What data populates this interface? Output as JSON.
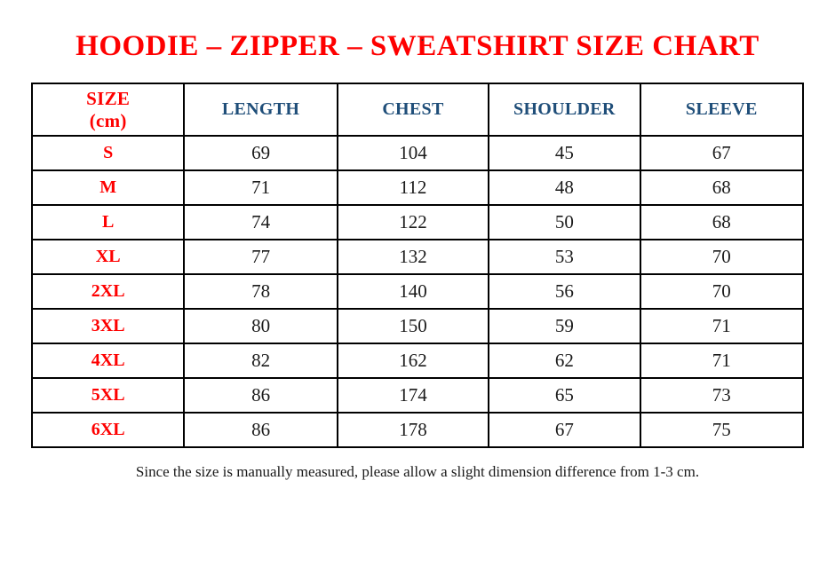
{
  "stray_dot": ".",
  "title": "HOODIE – ZIPPER – SWEATSHIRT SIZE CHART",
  "footnote": "Since the size is manually measured, please allow a slight dimension difference from 1-3 cm.",
  "colors": {
    "title_red": "#fe0000",
    "header_blue": "#1f4e79",
    "size_red": "#fe0000",
    "body_text": "#1b1b1b",
    "border": "#000000"
  },
  "table": {
    "header": {
      "size_lines": [
        "SIZE",
        "(cm)"
      ],
      "measure_columns": [
        "LENGTH",
        "CHEST",
        "SHOULDER",
        "SLEEVE"
      ]
    },
    "rows": [
      {
        "size": "S",
        "values": [
          "69",
          "104",
          "45",
          "67"
        ]
      },
      {
        "size": "M",
        "values": [
          "71",
          "112",
          "48",
          "68"
        ]
      },
      {
        "size": "L",
        "values": [
          "74",
          "122",
          "50",
          "68"
        ]
      },
      {
        "size": "XL",
        "values": [
          "77",
          "132",
          "53",
          "70"
        ]
      },
      {
        "size": "2XL",
        "values": [
          "78",
          "140",
          "56",
          "70"
        ]
      },
      {
        "size": "3XL",
        "values": [
          "80",
          "150",
          "59",
          "71"
        ]
      },
      {
        "size": "4XL",
        "values": [
          "82",
          "162",
          "62",
          "71"
        ]
      },
      {
        "size": "5XL",
        "values": [
          "86",
          "174",
          "65",
          "73"
        ]
      },
      {
        "size": "6XL",
        "values": [
          "86",
          "178",
          "67",
          "75"
        ]
      }
    ]
  }
}
